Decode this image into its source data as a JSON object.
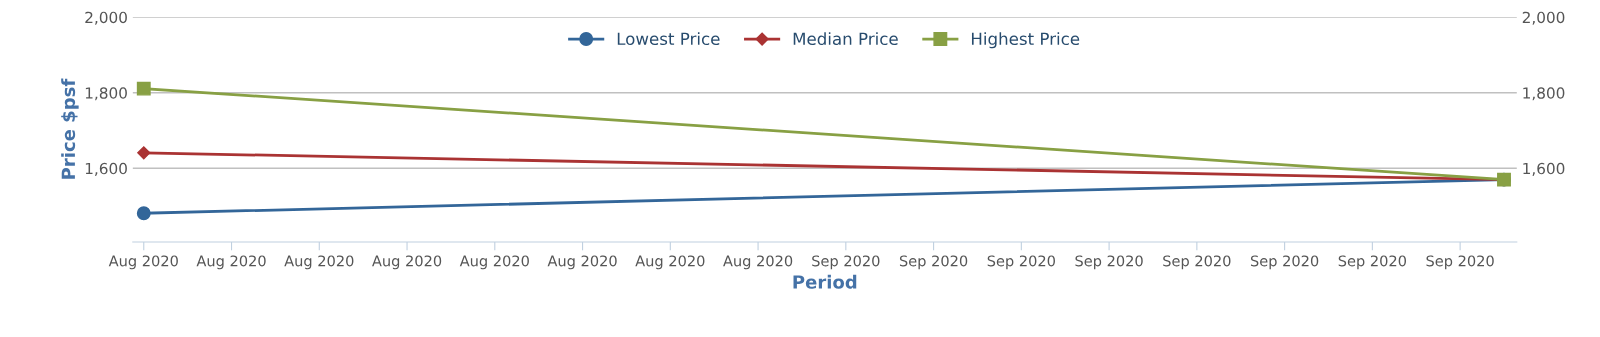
{
  "chart_data": {
    "type": "line",
    "xlabel": "Period",
    "ylabel": "Price $psf",
    "x": [
      "2020-08-01",
      "2020-10-02"
    ],
    "series": [
      {
        "name": "Lowest Price",
        "color": "#336699",
        "marker": "circle",
        "values": [
          1481,
          1570
        ]
      },
      {
        "name": "Median Price",
        "color": "#aa3333",
        "marker": "diamond",
        "values": [
          1641,
          1570
        ]
      },
      {
        "name": "Highest Price",
        "color": "#88a044",
        "marker": "square",
        "values": [
          1811,
          1570
        ]
      }
    ],
    "xlim": [
      "2020-07-31T12:00",
      "2020-10-02T14:00"
    ],
    "xticks": [
      {
        "value": "2020-08-01",
        "label": "Aug 2020"
      },
      {
        "value": "2020-08-05",
        "label": "Aug 2020"
      },
      {
        "value": "2020-08-09",
        "label": "Aug 2020"
      },
      {
        "value": "2020-08-13",
        "label": "Aug 2020"
      },
      {
        "value": "2020-08-17",
        "label": "Aug 2020"
      },
      {
        "value": "2020-08-21",
        "label": "Aug 2020"
      },
      {
        "value": "2020-08-25",
        "label": "Aug 2020"
      },
      {
        "value": "2020-08-29",
        "label": "Aug 2020"
      },
      {
        "value": "2020-09-02",
        "label": "Sep 2020"
      },
      {
        "value": "2020-09-06",
        "label": "Sep 2020"
      },
      {
        "value": "2020-09-10",
        "label": "Sep 2020"
      },
      {
        "value": "2020-09-14",
        "label": "Sep 2020"
      },
      {
        "value": "2020-09-18",
        "label": "Sep 2020"
      },
      {
        "value": "2020-09-22",
        "label": "Sep 2020"
      },
      {
        "value": "2020-09-26",
        "label": "Sep 2020"
      },
      {
        "value": "2020-09-30",
        "label": "Sep 2020"
      }
    ],
    "ylim": [
      1405,
      2000
    ],
    "yticks": [
      {
        "value": 1600,
        "label": "1,600"
      },
      {
        "value": 1800,
        "label": "1,800"
      },
      {
        "value": 2000,
        "label": "2,000"
      }
    ],
    "y2lim": [
      1405,
      2000
    ],
    "y2ticks": [
      {
        "value": 1600,
        "label": "1,600"
      },
      {
        "value": 1800,
        "label": "1,800"
      },
      {
        "value": 2000,
        "label": "2,000"
      }
    ],
    "grid": "y",
    "legend": "top",
    "line_style": "solid"
  }
}
